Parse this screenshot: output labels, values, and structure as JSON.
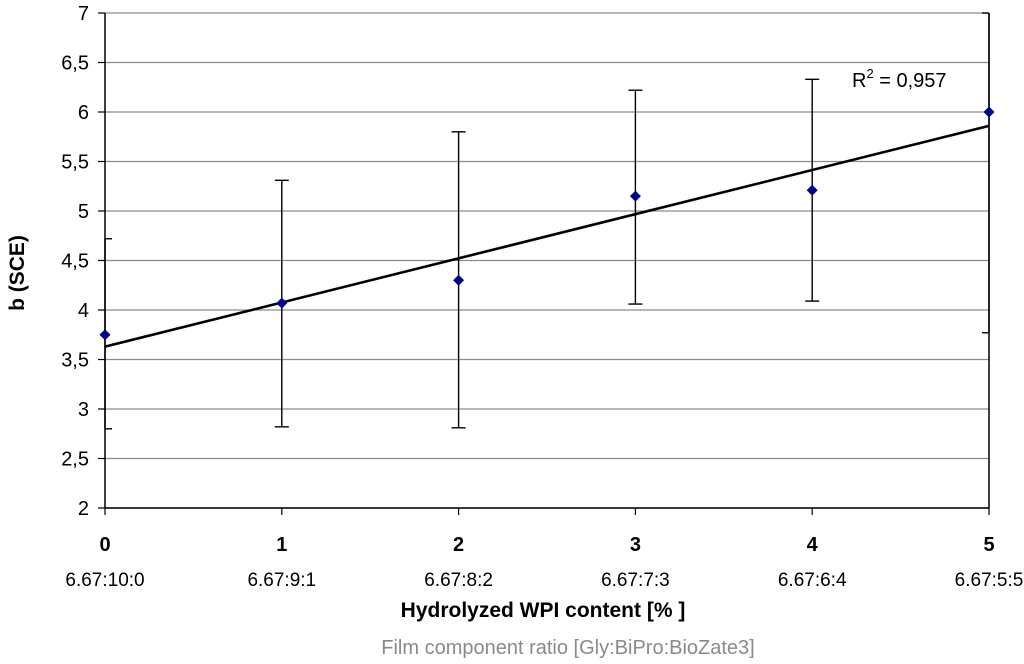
{
  "chart_data": {
    "type": "scatter",
    "x": [
      0,
      1,
      2,
      3,
      4,
      5
    ],
    "categories": [
      "0",
      "1",
      "2",
      "3",
      "4",
      "5"
    ],
    "ratio_labels": [
      "6.67:10:0",
      "6.67:9:1",
      "6.67:8:2",
      "6.67:7:3",
      "6.67:6:4",
      "6.67:5:5"
    ],
    "series": [
      {
        "values": [
          3.75,
          4.07,
          4.3,
          5.15,
          5.21,
          6.0
        ],
        "error_low": [
          2.8,
          2.82,
          2.81,
          4.06,
          4.09,
          3.77
        ],
        "error_high": [
          4.72,
          5.31,
          5.8,
          6.22,
          6.33,
          7.0
        ],
        "color": "#00008b"
      }
    ],
    "trendline": {
      "type": "linear",
      "y_start": 3.63,
      "y_end": 5.86,
      "r2_label": "R",
      "r2_sup": "2",
      "r2_value": " = 0,957"
    },
    "ylabel": "b (SCE)",
    "xlabel": "Hydrolyzed WPI content [% ]",
    "xlabel2": "Film component ratio [Gly:BiPro:BioZate3]",
    "ylim": [
      2,
      7
    ],
    "xlim": [
      0,
      5
    ],
    "yticks": [
      "2",
      "2,5",
      "3",
      "3,5",
      "4",
      "4,5",
      "5",
      "5,5",
      "6",
      "6,5",
      "7"
    ],
    "grid": true
  }
}
